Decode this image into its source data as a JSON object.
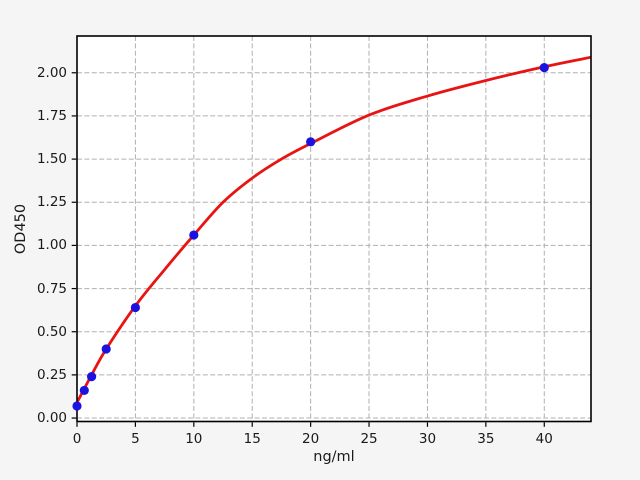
{
  "figure": {
    "background_color": "#f5f5f5",
    "plot_background_color": "#ffffff",
    "grid_color": "#b0b0b0",
    "spine_color": "#000000",
    "tick_color": "#000000",
    "text_color": "#1a1a1a"
  },
  "chart_data": {
    "type": "scatter",
    "title": "",
    "xlabel": "ng/ml",
    "ylabel": "OD450",
    "xlim": [
      0,
      44
    ],
    "ylim": [
      -0.02,
      2.213
    ],
    "grid": {
      "visible": true,
      "style": "dashed"
    },
    "legend": "none",
    "x_ticks": [
      0,
      5,
      10,
      15,
      20,
      25,
      30,
      35,
      40
    ],
    "x_tick_labels": [
      "0",
      "5",
      "10",
      "15",
      "20",
      "25",
      "30",
      "35",
      "40"
    ],
    "y_ticks": [
      0,
      0.25,
      0.5,
      0.75,
      1,
      1.25,
      1.5,
      1.75,
      2
    ],
    "y_tick_labels": [
      "0.00",
      "0.25",
      "0.50",
      "0.75",
      "1.00",
      "1.25",
      "1.50",
      "1.75",
      "2.00"
    ],
    "series": [
      {
        "name": "standard-points",
        "type": "scatter",
        "color": "#1c12df",
        "marker": "circle",
        "x": [
          0,
          0.625,
          1.25,
          2.5,
          5,
          10,
          20,
          40
        ],
        "y": [
          0.07,
          0.16,
          0.24,
          0.4,
          0.64,
          1.06,
          1.6,
          2.03
        ]
      },
      {
        "name": "fit-curve",
        "type": "line",
        "color": "#e81414",
        "x": [
          0,
          0.625,
          1.25,
          2.5,
          5,
          7.5,
          10,
          12.5,
          15,
          17.5,
          20,
          25,
          30,
          35,
          40,
          44
        ],
        "y": [
          0.09,
          0.17,
          0.25,
          0.4,
          0.65,
          0.86,
          1.06,
          1.25,
          1.39,
          1.5,
          1.59,
          1.755,
          1.865,
          1.955,
          2.035,
          2.09
        ]
      }
    ]
  }
}
